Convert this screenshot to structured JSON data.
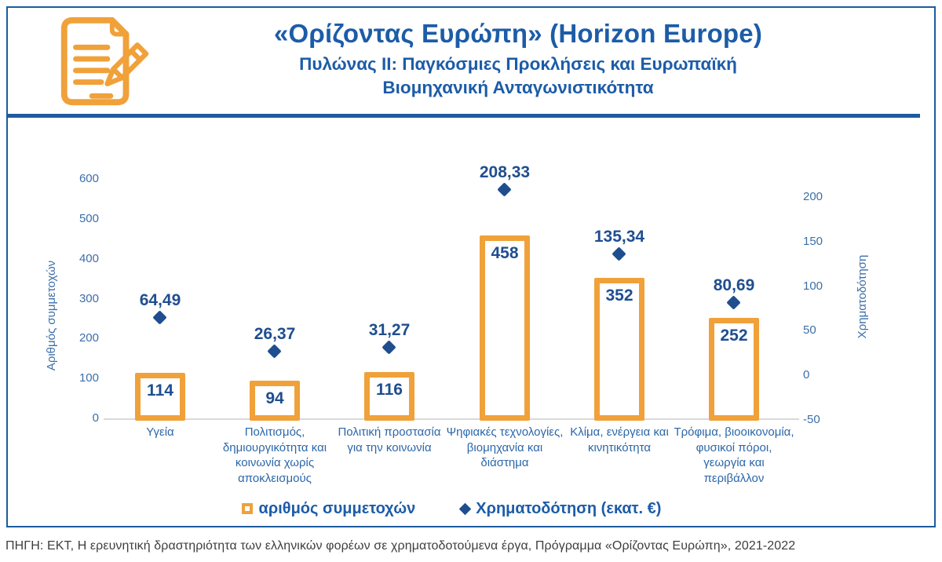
{
  "header": {
    "title": "«Ορίζοντας Ευρώπη» (Horizon Europe)",
    "subtitle": "Πυλώνας II: Παγκόσμιες Προκλήσεις και Ευρωπαϊκή Βιομηχανική Ανταγωνιστικότητα"
  },
  "chart_data": {
    "type": "bar",
    "categories": [
      "Υγεία",
      "Πολιτισμός, δημιουργικότητα και κοινωνία χωρίς αποκλεισμούς",
      "Πολιτική προστασία για την κοινωνία",
      "Ψηφιακές τεχνολογίες, βιομηχανία και διάστημα",
      "Κλίμα, ενέργεια και κινητικότητα",
      "Τρόφιμα, βιοοικονομία, φυσικοί πόροι, γεωργία και περιβάλλον"
    ],
    "series": [
      {
        "name": "αριθμός συμμετοχών",
        "type": "bar",
        "axis": "left",
        "values": [
          114,
          94,
          116,
          458,
          352,
          252
        ],
        "labels": [
          "114",
          "94",
          "116",
          "458",
          "352",
          "252"
        ],
        "color": "#f0a13a"
      },
      {
        "name": "Χρηματοδότηση (εκατ. €)",
        "type": "scatter",
        "axis": "right",
        "marker": "diamond",
        "values": [
          64.49,
          26.37,
          31.27,
          208.33,
          135.34,
          80.69
        ],
        "labels": [
          "64,49",
          "26,37",
          "31,27",
          "208,33",
          "135,34",
          "80,69"
        ],
        "color": "#1f4e8f"
      }
    ],
    "left_axis": {
      "label": "Αριθμός συμμετοχών",
      "min": 0,
      "max": 600,
      "step": 100
    },
    "right_axis": {
      "label": "Χρηματοδότηση",
      "min": -50,
      "max": 200,
      "step": 50
    },
    "legend_position": "bottom",
    "grid": false
  },
  "footer": {
    "source": "ΠΗΓΗ: ΕΚΤ, Η ερευνητική δραστηριότητα των ελληνικών φορέων σε χρηματοδοτούμενα έργα, Πρόγραμμα «Ορίζοντας Ευρώπη», 2021-2022"
  },
  "colors": {
    "accent_orange": "#f0a13a",
    "primary_blue": "#1c5ca8",
    "marker_navy": "#1f4e8f",
    "tick_blue": "#3c6ea8",
    "frame_blue": "#1d5b9e",
    "axis_gray": "#d9d9d9",
    "footer_gray": "#3e3e3e"
  }
}
